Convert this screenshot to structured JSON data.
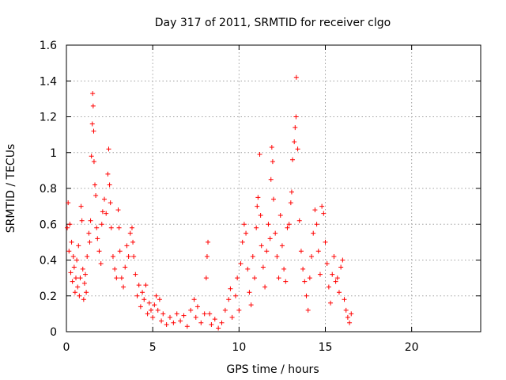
{
  "chart_data": {
    "type": "scatter",
    "title": "Day 317 of 2011, SRMTID for receiver clgo",
    "xlabel": "GPS time / hours",
    "ylabel": "SRMTID / TECUs",
    "xlim": [
      0,
      24
    ],
    "ylim": [
      0,
      1.6
    ],
    "xticks": [
      0,
      5,
      10,
      15,
      20
    ],
    "yticks": [
      0,
      0.2,
      0.4,
      0.6,
      0.8,
      1,
      1.2,
      1.4,
      1.6
    ],
    "xtick_labels": [
      "0",
      "5",
      "10",
      "15",
      "20"
    ],
    "ytick_labels": [
      "0",
      "0.2",
      "0.4",
      "0.6",
      "0.8",
      "1",
      "1.2",
      "1.4",
      "1.6"
    ],
    "grid": true,
    "marker": "+",
    "series": [
      {
        "name": "SRMTID",
        "color": "#ff0000",
        "points": [
          [
            0.05,
            0.58
          ],
          [
            0.1,
            0.72
          ],
          [
            0.15,
            0.45
          ],
          [
            0.2,
            0.6
          ],
          [
            0.25,
            0.33
          ],
          [
            0.3,
            0.5
          ],
          [
            0.35,
            0.28
          ],
          [
            0.4,
            0.42
          ],
          [
            0.45,
            0.36
          ],
          [
            0.5,
            0.22
          ],
          [
            0.55,
            0.3
          ],
          [
            0.6,
            0.4
          ],
          [
            0.65,
            0.25
          ],
          [
            0.7,
            0.48
          ],
          [
            0.75,
            0.2
          ],
          [
            0.8,
            0.3
          ],
          [
            0.85,
            0.7
          ],
          [
            0.9,
            0.62
          ],
          [
            0.95,
            0.35
          ],
          [
            1.0,
            0.18
          ],
          [
            1.05,
            0.27
          ],
          [
            1.1,
            0.32
          ],
          [
            1.15,
            0.22
          ],
          [
            1.2,
            0.42
          ],
          [
            1.3,
            0.55
          ],
          [
            1.35,
            0.5
          ],
          [
            1.4,
            0.62
          ],
          [
            1.45,
            0.98
          ],
          [
            1.5,
            1.16
          ],
          [
            1.52,
            1.33
          ],
          [
            1.55,
            1.26
          ],
          [
            1.58,
            1.12
          ],
          [
            1.6,
            0.95
          ],
          [
            1.65,
            0.82
          ],
          [
            1.7,
            0.76
          ],
          [
            1.75,
            0.58
          ],
          [
            1.8,
            0.52
          ],
          [
            1.9,
            0.45
          ],
          [
            2.0,
            0.38
          ],
          [
            2.05,
            0.6
          ],
          [
            2.1,
            0.67
          ],
          [
            2.2,
            0.74
          ],
          [
            2.3,
            0.66
          ],
          [
            2.4,
            0.88
          ],
          [
            2.45,
            1.02
          ],
          [
            2.5,
            0.82
          ],
          [
            2.55,
            0.72
          ],
          [
            2.6,
            0.58
          ],
          [
            2.7,
            0.42
          ],
          [
            2.8,
            0.35
          ],
          [
            2.9,
            0.3
          ],
          [
            3.0,
            0.68
          ],
          [
            3.05,
            0.58
          ],
          [
            3.1,
            0.45
          ],
          [
            3.2,
            0.3
          ],
          [
            3.3,
            0.25
          ],
          [
            3.4,
            0.36
          ],
          [
            3.5,
            0.48
          ],
          [
            3.6,
            0.42
          ],
          [
            3.7,
            0.55
          ],
          [
            3.8,
            0.58
          ],
          [
            3.85,
            0.5
          ],
          [
            3.9,
            0.42
          ],
          [
            4.0,
            0.32
          ],
          [
            4.1,
            0.2
          ],
          [
            4.2,
            0.26
          ],
          [
            4.3,
            0.14
          ],
          [
            4.4,
            0.22
          ],
          [
            4.5,
            0.18
          ],
          [
            4.6,
            0.26
          ],
          [
            4.7,
            0.1
          ],
          [
            4.8,
            0.16
          ],
          [
            4.9,
            0.12
          ],
          [
            5.0,
            0.08
          ],
          [
            5.1,
            0.15
          ],
          [
            5.2,
            0.2
          ],
          [
            5.3,
            0.12
          ],
          [
            5.4,
            0.18
          ],
          [
            5.5,
            0.06
          ],
          [
            5.6,
            0.1
          ],
          [
            5.8,
            0.04
          ],
          [
            6.0,
            0.08
          ],
          [
            6.2,
            0.05
          ],
          [
            6.4,
            0.1
          ],
          [
            6.6,
            0.06
          ],
          [
            6.8,
            0.09
          ],
          [
            7.0,
            0.03
          ],
          [
            7.2,
            0.12
          ],
          [
            7.4,
            0.18
          ],
          [
            7.5,
            0.08
          ],
          [
            7.6,
            0.14
          ],
          [
            7.8,
            0.05
          ],
          [
            8.0,
            0.1
          ],
          [
            8.1,
            0.3
          ],
          [
            8.15,
            0.42
          ],
          [
            8.2,
            0.5
          ],
          [
            8.3,
            0.1
          ],
          [
            8.4,
            0.04
          ],
          [
            8.6,
            0.07
          ],
          [
            8.8,
            0.02
          ],
          [
            9.0,
            0.05
          ],
          [
            9.2,
            0.12
          ],
          [
            9.4,
            0.18
          ],
          [
            9.5,
            0.24
          ],
          [
            9.6,
            0.08
          ],
          [
            9.8,
            0.2
          ],
          [
            9.9,
            0.3
          ],
          [
            10.0,
            0.12
          ],
          [
            10.1,
            0.38
          ],
          [
            10.2,
            0.5
          ],
          [
            10.3,
            0.6
          ],
          [
            10.4,
            0.55
          ],
          [
            10.5,
            0.35
          ],
          [
            10.6,
            0.22
          ],
          [
            10.7,
            0.15
          ],
          [
            10.8,
            0.42
          ],
          [
            10.9,
            0.3
          ],
          [
            11.0,
            0.58
          ],
          [
            11.05,
            0.7
          ],
          [
            11.1,
            0.75
          ],
          [
            11.2,
            0.99
          ],
          [
            11.25,
            0.65
          ],
          [
            11.3,
            0.48
          ],
          [
            11.4,
            0.36
          ],
          [
            11.5,
            0.25
          ],
          [
            11.6,
            0.45
          ],
          [
            11.7,
            0.6
          ],
          [
            11.8,
            0.52
          ],
          [
            11.85,
            0.85
          ],
          [
            11.9,
            1.03
          ],
          [
            11.95,
            0.95
          ],
          [
            12.0,
            0.74
          ],
          [
            12.1,
            0.55
          ],
          [
            12.2,
            0.42
          ],
          [
            12.3,
            0.3
          ],
          [
            12.4,
            0.65
          ],
          [
            12.5,
            0.48
          ],
          [
            12.6,
            0.35
          ],
          [
            12.7,
            0.28
          ],
          [
            12.8,
            0.58
          ],
          [
            12.9,
            0.6
          ],
          [
            13.0,
            0.72
          ],
          [
            13.05,
            0.78
          ],
          [
            13.1,
            0.96
          ],
          [
            13.2,
            1.06
          ],
          [
            13.25,
            1.14
          ],
          [
            13.3,
            1.2
          ],
          [
            13.32,
            1.42
          ],
          [
            13.4,
            1.02
          ],
          [
            13.5,
            0.62
          ],
          [
            13.6,
            0.45
          ],
          [
            13.7,
            0.35
          ],
          [
            13.8,
            0.28
          ],
          [
            13.9,
            0.2
          ],
          [
            14.0,
            0.12
          ],
          [
            14.1,
            0.3
          ],
          [
            14.2,
            0.42
          ],
          [
            14.3,
            0.55
          ],
          [
            14.4,
            0.68
          ],
          [
            14.5,
            0.6
          ],
          [
            14.6,
            0.45
          ],
          [
            14.7,
            0.32
          ],
          [
            14.8,
            0.7
          ],
          [
            14.9,
            0.66
          ],
          [
            15.0,
            0.5
          ],
          [
            15.1,
            0.38
          ],
          [
            15.2,
            0.25
          ],
          [
            15.3,
            0.16
          ],
          [
            15.4,
            0.32
          ],
          [
            15.5,
            0.42
          ],
          [
            15.6,
            0.28
          ],
          [
            15.7,
            0.3
          ],
          [
            15.8,
            0.22
          ],
          [
            15.9,
            0.36
          ],
          [
            16.0,
            0.4
          ],
          [
            16.1,
            0.18
          ],
          [
            16.2,
            0.12
          ],
          [
            16.3,
            0.08
          ],
          [
            16.4,
            0.05
          ],
          [
            16.5,
            0.1
          ]
        ]
      }
    ]
  }
}
